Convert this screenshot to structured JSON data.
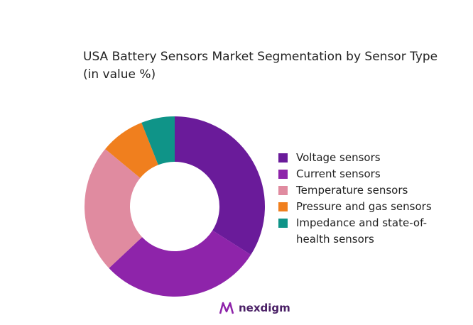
{
  "chart_data": {
    "type": "donut",
    "title": "USA Battery Sensors Market Segmentation by Sensor Type (in value %)",
    "categories": [
      "Voltage sensors",
      "Current sensors",
      "Temperature sensors",
      "Pressure and gas sensors",
      "Impedance and state-of-health sensors"
    ],
    "values": [
      34,
      29,
      23,
      8,
      6
    ],
    "colors": [
      "#6a1b9a",
      "#8e24aa",
      "#e08ba0",
      "#f07f1e",
      "#0f9488"
    ],
    "legend": "right"
  },
  "logo": "nexdigm"
}
